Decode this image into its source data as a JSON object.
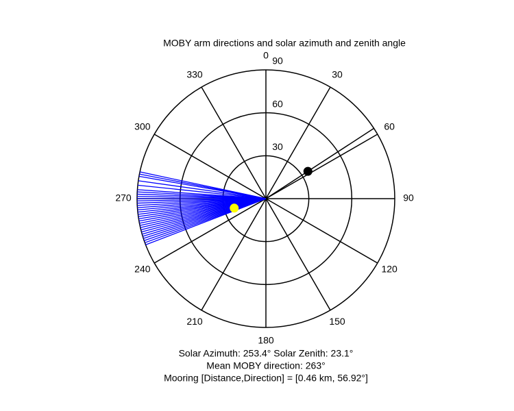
{
  "chart_data": {
    "type": "polar",
    "title": "MOBY arm directions and solar azimuth and zenith angle",
    "rlim": [
      0,
      90
    ],
    "rticks": [
      30,
      60,
      90
    ],
    "thetaticks": [
      0,
      30,
      60,
      90,
      120,
      150,
      180,
      210,
      240,
      270,
      300,
      330
    ],
    "series": [
      {
        "kind": "line",
        "color": "#0000ff",
        "theta": [
          249,
          250,
          251,
          252,
          253,
          254,
          255,
          256,
          257,
          258,
          259,
          260,
          261,
          262,
          263,
          264,
          265,
          266,
          267,
          268,
          269,
          270,
          271,
          272,
          273,
          274,
          276,
          278,
          280,
          281,
          282
        ],
        "r": [
          90,
          90,
          90,
          90,
          90,
          90,
          90,
          90,
          90,
          90,
          90,
          90,
          90,
          90,
          90,
          90,
          90,
          90,
          90,
          90,
          90,
          90,
          90,
          90,
          90,
          90,
          90,
          90,
          90,
          90,
          90
        ]
      },
      {
        "kind": "point",
        "color": "#ffff00",
        "theta": [
          253.4
        ],
        "r": [
          23.1
        ]
      },
      {
        "kind": "point-line",
        "color": "#000000",
        "theta": [
          56.92
        ],
        "r": [
          35
        ]
      }
    ],
    "notes": [
      "Solar Azimuth: 253.4°   Solar Zenith: 23.1°",
      "Mean MOBY direction: 263°",
      "Mooring [Distance,Direction] = [0.46 km, 56.92°]"
    ]
  }
}
